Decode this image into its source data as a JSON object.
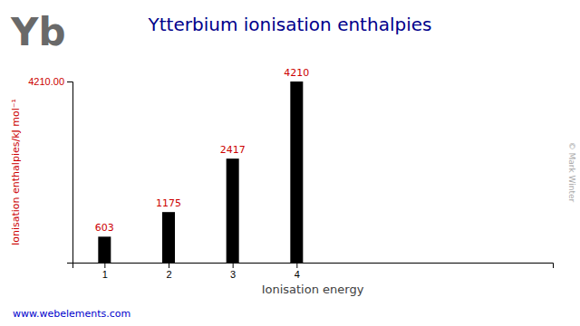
{
  "chart_data": {
    "type": "bar",
    "title": "Ytterbium ionisation enthalpies",
    "xlabel": "Ionisation energy",
    "ylabel": "Ionisation enthalpies/kJ mol⁻¹",
    "x": [
      1,
      2,
      3,
      4
    ],
    "values": [
      603,
      1175,
      2417,
      4210
    ],
    "color": "#000000",
    "xlim": [
      0.5,
      8.0
    ],
    "xticks": [
      1,
      2,
      3,
      4
    ],
    "ylim": [
      0,
      4210
    ],
    "yticks": [
      {
        "value": 4210,
        "label": "4210.00"
      }
    ],
    "grid": false,
    "data_labels": true,
    "annotations": [
      "Yb",
      "© Mark Winter",
      "www.webelements.com"
    ]
  }
}
